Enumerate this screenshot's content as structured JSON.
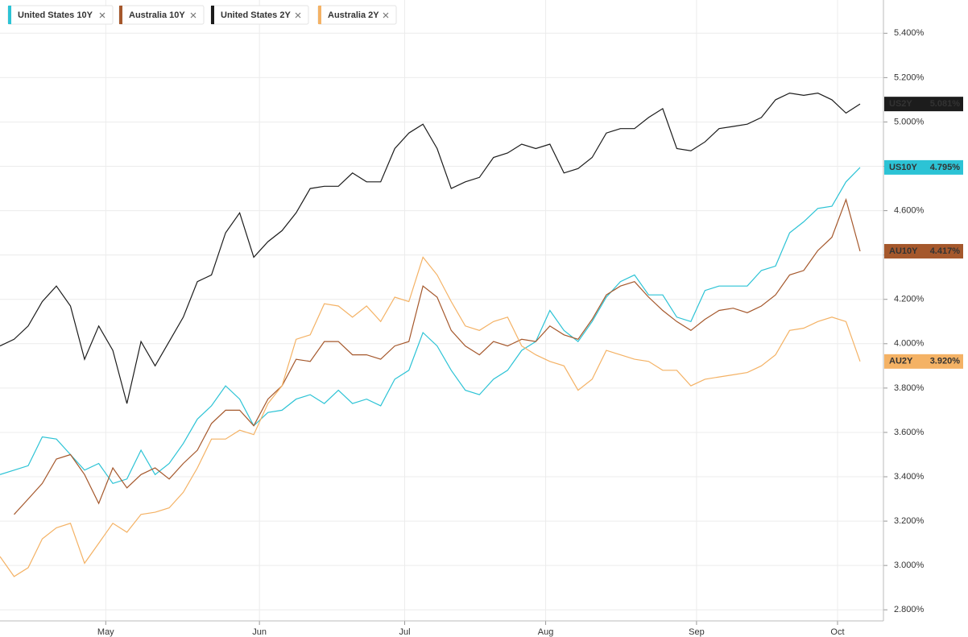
{
  "chart_data": {
    "type": "line",
    "xlim": [
      0,
      61
    ],
    "xticks": [
      {
        "value": 7.5,
        "label": "May"
      },
      {
        "value": 18.4,
        "label": "Jun"
      },
      {
        "value": 28.7,
        "label": "Jul"
      },
      {
        "value": 38.7,
        "label": "Aug"
      },
      {
        "value": 49.4,
        "label": "Sep"
      },
      {
        "value": 59.4,
        "label": "Oct"
      }
    ],
    "ylim": [
      2.75,
      5.55
    ],
    "yticks": [
      {
        "value": 2.8,
        "label": "2.800%"
      },
      {
        "value": 3.0,
        "label": "3.000%"
      },
      {
        "value": 3.2,
        "label": "3.200%"
      },
      {
        "value": 3.4,
        "label": "3.400%"
      },
      {
        "value": 3.6,
        "label": "3.600%"
      },
      {
        "value": 3.8,
        "label": "3.800%"
      },
      {
        "value": 4.0,
        "label": "4.000%"
      },
      {
        "value": 4.2,
        "label": "4.200%"
      },
      {
        "value": 4.4,
        "label": "4.400%"
      },
      {
        "value": 4.6,
        "label": "4.600%"
      },
      {
        "value": 4.8,
        "label": "4.800%"
      },
      {
        "value": 5.0,
        "label": "5.000%"
      },
      {
        "value": 5.2,
        "label": "5.200%"
      },
      {
        "value": 5.4,
        "label": "5.400%"
      }
    ],
    "grid": true,
    "series": [
      {
        "name": "United States 10Y",
        "tag": "US10Y",
        "color": "#2cc3d5",
        "values": [
          3.41,
          3.43,
          3.45,
          3.58,
          3.57,
          3.5,
          3.43,
          3.46,
          3.37,
          3.39,
          3.52,
          3.41,
          3.46,
          3.55,
          3.66,
          3.72,
          3.81,
          3.75,
          3.63,
          3.69,
          3.7,
          3.75,
          3.77,
          3.73,
          3.79,
          3.73,
          3.75,
          3.72,
          3.84,
          3.88,
          4.05,
          3.99,
          3.88,
          3.79,
          3.77,
          3.84,
          3.88,
          3.97,
          4.01,
          4.15,
          4.06,
          4.01,
          4.1,
          4.21,
          4.28,
          4.31,
          4.22,
          4.22,
          4.12,
          4.1,
          4.24,
          4.26,
          4.26,
          4.26,
          4.33,
          4.35,
          4.5,
          4.55,
          4.61,
          4.62,
          4.73,
          4.795
        ],
        "value_labels": [
          null,
          null,
          null,
          null,
          null,
          null,
          null,
          null,
          null,
          null,
          null,
          null,
          null,
          null,
          null,
          null,
          null,
          null,
          null,
          null,
          null,
          null,
          null,
          null,
          null,
          null,
          null,
          null,
          null,
          null,
          null,
          null,
          null,
          null,
          null,
          null,
          null,
          null,
          null,
          null,
          null,
          null,
          null,
          null,
          null,
          null,
          null,
          null,
          null,
          null,
          null,
          null,
          null,
          null,
          null,
          null,
          null,
          null,
          null,
          null,
          null,
          "4.795%"
        ]
      },
      {
        "name": "Australia 10Y",
        "tag": "AU10Y",
        "color": "#a5582c",
        "values": [
          null,
          3.23,
          3.3,
          3.37,
          3.48,
          3.5,
          3.41,
          3.28,
          3.44,
          3.35,
          3.41,
          3.44,
          3.39,
          3.46,
          3.52,
          3.64,
          3.7,
          3.7,
          3.63,
          3.75,
          3.81,
          3.93,
          3.92,
          4.01,
          4.01,
          3.95,
          3.95,
          3.93,
          3.99,
          4.01,
          4.26,
          4.21,
          4.06,
          3.99,
          3.95,
          4.01,
          3.99,
          4.02,
          4.01,
          4.08,
          4.04,
          4.02,
          4.11,
          4.22,
          4.26,
          4.28,
          4.21,
          4.15,
          4.1,
          4.06,
          4.11,
          4.15,
          4.16,
          4.14,
          4.17,
          4.22,
          4.31,
          4.33,
          4.42,
          4.48,
          4.65,
          4.417
        ],
        "value_labels": [
          null,
          null,
          null,
          null,
          null,
          null,
          null,
          null,
          null,
          null,
          null,
          null,
          null,
          null,
          null,
          null,
          null,
          null,
          null,
          null,
          null,
          null,
          null,
          null,
          null,
          null,
          null,
          null,
          null,
          null,
          null,
          null,
          null,
          null,
          null,
          null,
          null,
          null,
          null,
          null,
          null,
          null,
          null,
          null,
          null,
          null,
          null,
          null,
          null,
          null,
          null,
          null,
          null,
          null,
          null,
          null,
          null,
          null,
          null,
          null,
          null,
          "4.417%"
        ]
      },
      {
        "name": "United States 2Y",
        "tag": "US2Y",
        "color": "#1c1c1c",
        "values": [
          3.99,
          4.02,
          4.08,
          4.19,
          4.26,
          4.17,
          3.93,
          4.08,
          3.97,
          3.73,
          4.01,
          3.9,
          4.01,
          4.12,
          4.28,
          4.31,
          4.5,
          4.59,
          4.39,
          4.46,
          4.51,
          4.59,
          4.7,
          4.71,
          4.71,
          4.77,
          4.73,
          4.73,
          4.88,
          4.95,
          4.99,
          4.88,
          4.7,
          4.73,
          4.75,
          4.84,
          4.86,
          4.9,
          4.88,
          4.9,
          4.77,
          4.79,
          4.84,
          4.95,
          4.97,
          4.97,
          5.02,
          5.06,
          4.88,
          4.87,
          4.91,
          4.97,
          4.98,
          4.99,
          5.02,
          5.1,
          5.13,
          5.12,
          5.13,
          5.1,
          5.04,
          5.081
        ],
        "value_labels": [
          null,
          null,
          null,
          null,
          null,
          null,
          null,
          null,
          null,
          null,
          null,
          null,
          null,
          null,
          null,
          null,
          null,
          null,
          null,
          null,
          null,
          null,
          null,
          null,
          null,
          null,
          null,
          null,
          null,
          null,
          null,
          null,
          null,
          null,
          null,
          null,
          null,
          null,
          null,
          null,
          null,
          null,
          null,
          null,
          null,
          null,
          null,
          null,
          null,
          null,
          null,
          null,
          null,
          null,
          null,
          null,
          null,
          null,
          null,
          null,
          null,
          "5.081%"
        ]
      },
      {
        "name": "Australia 2Y",
        "tag": "AU2Y",
        "color": "#f4b265",
        "values": [
          3.04,
          2.95,
          2.99,
          3.12,
          3.17,
          3.19,
          3.01,
          3.1,
          3.19,
          3.15,
          3.23,
          3.24,
          3.26,
          3.33,
          3.44,
          3.57,
          3.57,
          3.61,
          3.59,
          3.73,
          3.81,
          4.02,
          4.04,
          4.18,
          4.17,
          4.12,
          4.17,
          4.1,
          4.21,
          4.19,
          4.39,
          4.31,
          4.19,
          4.08,
          4.06,
          4.1,
          4.12,
          3.99,
          3.95,
          3.92,
          3.9,
          3.79,
          3.84,
          3.97,
          3.95,
          3.93,
          3.92,
          3.88,
          3.88,
          3.81,
          3.84,
          3.85,
          3.86,
          3.87,
          3.9,
          3.95,
          4.06,
          4.07,
          4.1,
          4.12,
          4.1,
          3.92
        ],
        "value_labels": [
          null,
          null,
          null,
          null,
          null,
          null,
          null,
          null,
          null,
          null,
          null,
          null,
          null,
          null,
          null,
          null,
          null,
          null,
          null,
          null,
          null,
          null,
          null,
          null,
          null,
          null,
          null,
          null,
          null,
          null,
          null,
          null,
          null,
          null,
          null,
          null,
          null,
          null,
          null,
          null,
          null,
          null,
          null,
          null,
          null,
          null,
          null,
          null,
          null,
          null,
          null,
          null,
          null,
          null,
          null,
          null,
          null,
          null,
          null,
          null,
          null,
          "3.920%"
        ]
      }
    ]
  }
}
